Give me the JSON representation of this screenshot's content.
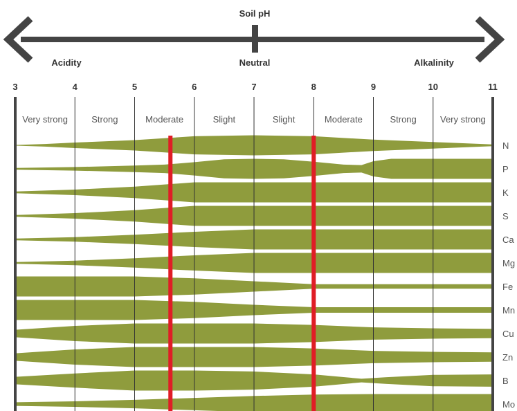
{
  "title": "Soil pH",
  "labels": {
    "left": "Acidity",
    "center": "Neutral",
    "right": "Alkalinity"
  },
  "colors": {
    "band": "#8f9c3d",
    "marker": "#e01d26",
    "axis": "#444444",
    "grid": "#333333"
  },
  "chart_data": {
    "type": "diagram",
    "x_axis": {
      "ticks": [
        "3",
        "4",
        "5",
        "6",
        "7",
        "8",
        "9",
        "10",
        "11"
      ],
      "range": [
        3,
        11
      ]
    },
    "classes": [
      "Very strong",
      "Strong",
      "Moderate",
      "Slight",
      "Slight",
      "Moderate",
      "Strong",
      "Very strong"
    ],
    "optimal_range": [
      5.6,
      8.0
    ],
    "availability_scale": "relative band thickness 0-1",
    "nutrients": [
      {
        "name": "N",
        "profile": [
          [
            3,
            0
          ],
          [
            3.5,
            0.1
          ],
          [
            4,
            0.25
          ],
          [
            5,
            0.5
          ],
          [
            6,
            0.9
          ],
          [
            7,
            1
          ],
          [
            8,
            0.9
          ],
          [
            9,
            0.55
          ],
          [
            10,
            0.3
          ],
          [
            11,
            0.05
          ]
        ]
      },
      {
        "name": "P",
        "profile": [
          [
            3,
            0.05
          ],
          [
            4,
            0.15
          ],
          [
            5,
            0.3
          ],
          [
            5.5,
            0.4
          ],
          [
            6,
            0.65
          ],
          [
            6.5,
            0.95
          ],
          [
            7,
            1
          ],
          [
            7.5,
            0.95
          ],
          [
            8,
            0.7
          ],
          [
            8.5,
            0.4
          ],
          [
            8.8,
            0.35
          ],
          [
            9,
            0.75
          ],
          [
            9.3,
            1
          ],
          [
            11,
            1
          ]
        ]
      },
      {
        "name": "K",
        "profile": [
          [
            3,
            0.05
          ],
          [
            4,
            0.25
          ],
          [
            5,
            0.55
          ],
          [
            6,
            1
          ],
          [
            11,
            1
          ]
        ]
      },
      {
        "name": "S",
        "profile": [
          [
            3,
            0.05
          ],
          [
            4,
            0.25
          ],
          [
            5,
            0.55
          ],
          [
            6,
            1
          ],
          [
            11,
            1
          ]
        ]
      },
      {
        "name": "Ca",
        "profile": [
          [
            3,
            0.05
          ],
          [
            4,
            0.2
          ],
          [
            5,
            0.45
          ],
          [
            6,
            0.75
          ],
          [
            7,
            1
          ],
          [
            11,
            1
          ]
        ]
      },
      {
        "name": "Mg",
        "profile": [
          [
            3,
            0.05
          ],
          [
            4,
            0.2
          ],
          [
            5,
            0.45
          ],
          [
            6,
            0.75
          ],
          [
            7,
            1
          ],
          [
            11,
            1
          ]
        ]
      },
      {
        "name": "Fe",
        "profile": [
          [
            3,
            1
          ],
          [
            5,
            1
          ],
          [
            6,
            0.8
          ],
          [
            7,
            0.5
          ],
          [
            8,
            0.2
          ],
          [
            9,
            0.2
          ],
          [
            11,
            0.2
          ]
        ]
      },
      {
        "name": "Mn",
        "profile": [
          [
            3,
            1
          ],
          [
            5,
            1
          ],
          [
            6,
            0.8
          ],
          [
            7,
            0.5
          ],
          [
            8,
            0.25
          ],
          [
            9,
            0.25
          ],
          [
            11,
            0.25
          ]
        ]
      },
      {
        "name": "Cu",
        "profile": [
          [
            3,
            0.35
          ],
          [
            4,
            0.75
          ],
          [
            5,
            1
          ],
          [
            7,
            1
          ],
          [
            8,
            0.85
          ],
          [
            9,
            0.6
          ],
          [
            10,
            0.5
          ],
          [
            11,
            0.45
          ]
        ]
      },
      {
        "name": "Zn",
        "profile": [
          [
            3,
            0.35
          ],
          [
            4,
            0.75
          ],
          [
            5,
            1
          ],
          [
            7,
            1
          ],
          [
            8,
            0.85
          ],
          [
            9,
            0.6
          ],
          [
            10,
            0.5
          ],
          [
            11,
            0.45
          ]
        ]
      },
      {
        "name": "B",
        "profile": [
          [
            3,
            0.35
          ],
          [
            4,
            0.7
          ],
          [
            5,
            1
          ],
          [
            6,
            1
          ],
          [
            7,
            0.9
          ],
          [
            8,
            0.6
          ],
          [
            8.8,
            0.15
          ],
          [
            9.2,
            0.3
          ],
          [
            10,
            0.55
          ],
          [
            11,
            0.6
          ]
        ]
      },
      {
        "name": "Mo",
        "profile": [
          [
            3,
            0.15
          ],
          [
            4,
            0.25
          ],
          [
            5,
            0.4
          ],
          [
            6,
            0.6
          ],
          [
            7,
            0.8
          ],
          [
            8,
            0.95
          ],
          [
            9,
            1
          ],
          [
            11,
            1
          ]
        ]
      }
    ]
  }
}
